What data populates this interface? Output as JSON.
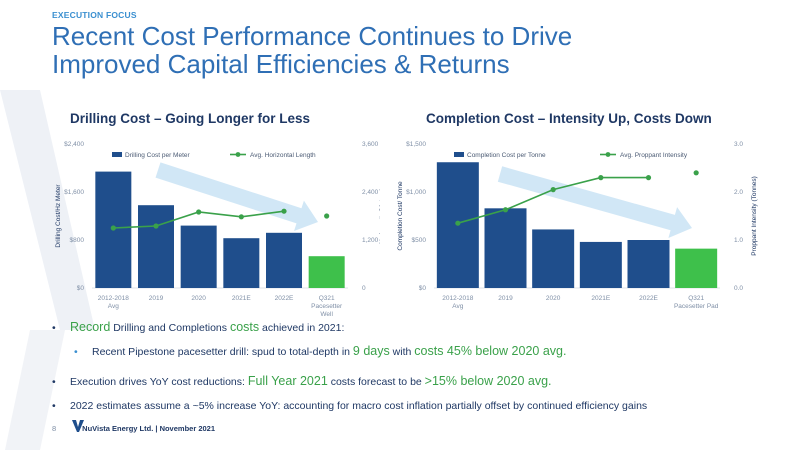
{
  "header": {
    "eyebrow": "EXECUTION FOCUS",
    "title_line1": "Recent Cost Performance Continues to Drive",
    "title_line2": "Improved Capital Efficiencies & Returns"
  },
  "chart_data": [
    {
      "type": "bar",
      "title": "Drilling Cost – Going Longer for Less",
      "categories": [
        "2012-2018 Avg",
        "2019",
        "2020",
        "2021E",
        "2022E",
        "Q321 Pacesetter Well"
      ],
      "series": [
        {
          "name": "Drilling Cost per Meter",
          "type": "bar",
          "axis": "left",
          "values": [
            1940,
            1380,
            1040,
            830,
            920,
            530
          ]
        },
        {
          "name": "Avg. Horizontal Length",
          "type": "line",
          "axis": "right",
          "values": [
            1500,
            1550,
            1900,
            1780,
            1920,
            1800
          ]
        }
      ],
      "highlight_last": true,
      "ylabel": "Drilling Cost/Hz Meter",
      "y2label": "Hz Length (Meters)",
      "ylim": [
        0,
        2400
      ],
      "y2lim": [
        0,
        3600
      ],
      "yticks": [
        "$0",
        "$800",
        "$1,600",
        "$2,400"
      ],
      "y2ticks": [
        "0",
        "1,200",
        "2,400",
        "3,600"
      ],
      "legend": "top"
    },
    {
      "type": "bar",
      "title": "Completion Cost – Intensity Up, Costs Down",
      "categories": [
        "2012-2018 Avg",
        "2019",
        "2020",
        "2021E",
        "2022E",
        "Q321 Pacesetter Pad"
      ],
      "series": [
        {
          "name": "Completion Cost per Tonne",
          "type": "bar",
          "axis": "left",
          "values": [
            1310,
            830,
            610,
            480,
            500,
            410
          ]
        },
        {
          "name": "Avg. Proppant Intensity",
          "type": "line",
          "axis": "right",
          "values": [
            1.35,
            1.63,
            2.05,
            2.3,
            2.3,
            2.4
          ]
        }
      ],
      "highlight_last": true,
      "ylabel": "Completion Cost/ Tonne",
      "y2label": "Proppant Intensity (Tonnes)",
      "ylim": [
        0,
        1500
      ],
      "y2lim": [
        0,
        3
      ],
      "yticks": [
        "$0",
        "$500",
        "$1,000",
        "$1,500"
      ],
      "y2ticks": [
        "0.0",
        "1.0",
        "2.0",
        "3.0"
      ],
      "legend": "top"
    }
  ],
  "bullets": {
    "b1": {
      "p1": "Record",
      "p2": " Drilling and Completions ",
      "p3": "costs",
      "p4": " achieved in 2021:"
    },
    "b2": {
      "p1": "Recent Pipestone pacesetter drill: spud to total-depth in ",
      "p2": "9 days",
      "p3": " with ",
      "p4": "costs 45% below 2020 avg."
    },
    "b3": {
      "p1": "Execution drives YoY cost reductions: ",
      "p2": "Full Year 2021",
      "p3": " costs forecast to be ",
      "p4": ">15% below 2020 avg."
    },
    "b4": {
      "p1": "2022 estimates assume a ~5% increase YoY: accounting for macro cost inflation partially offset by continued efficiency gains"
    }
  },
  "footer": {
    "page": "8",
    "text": "NuVista Energy Ltd. | November 2021"
  },
  "colors": {
    "bar": "#1f4e8c",
    "highlight": "#3ec04b",
    "line": "#3aa14a",
    "title": "#2f6fb5",
    "eyebrow": "#3a8fd0",
    "arrow": "#c9e3f5"
  }
}
